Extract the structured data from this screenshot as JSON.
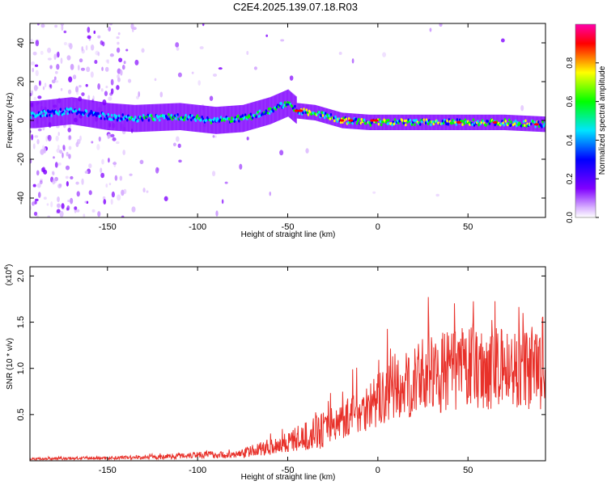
{
  "title": "C2E4.2025.139.07.18.R03",
  "chart_data": [
    {
      "type": "heatmap",
      "xlabel": "Height of straight line (km)",
      "ylabel": "Frequency (Hz)",
      "xlim": [
        -193,
        93
      ],
      "ylim": [
        -50,
        50
      ],
      "xticks": [
        -150,
        -100,
        -50,
        0,
        50
      ],
      "yticks": [
        -40,
        -20,
        0,
        20,
        40
      ],
      "colorbar": {
        "label": "Normalized spectral amplitude",
        "range": [
          0,
          1
        ],
        "ticks": [
          0.0,
          0.2,
          0.4,
          0.6,
          0.8
        ],
        "colors": [
          "#ffffff",
          "#d9b3ff",
          "#8000ff",
          "#0000ff",
          "#00e5ff",
          "#00ff00",
          "#ffff00",
          "#ff0000",
          "#ff00aa"
        ]
      },
      "ridge": [
        {
          "x": -190,
          "y": 3
        },
        {
          "x": -170,
          "y": 5
        },
        {
          "x": -150,
          "y": 2
        },
        {
          "x": -135,
          "y": 1
        },
        {
          "x": -110,
          "y": 2
        },
        {
          "x": -90,
          "y": 0
        },
        {
          "x": -75,
          "y": 1
        },
        {
          "x": -60,
          "y": 5
        },
        {
          "x": -50,
          "y": 9
        },
        {
          "x": -45,
          "y": 5
        },
        {
          "x": -35,
          "y": 4
        },
        {
          "x": -20,
          "y": 0
        },
        {
          "x": -5,
          "y": -1
        },
        {
          "x": 10,
          "y": -1
        },
        {
          "x": 40,
          "y": -1
        },
        {
          "x": 70,
          "y": -1
        },
        {
          "x": 93,
          "y": -2
        }
      ]
    },
    {
      "type": "line",
      "xlabel": "Height of straight line (km)",
      "ylabel": "SNR (10 * v/v)",
      "multiplier": "(x10",
      "multiplier_exp": "4",
      "multiplier_close": ")",
      "xlim": [
        -193,
        93
      ],
      "ylim": [
        0,
        21000
      ],
      "xticks": [
        -150,
        -100,
        -50,
        0,
        50
      ],
      "yticks": [
        5000,
        10000,
        15000,
        20000
      ],
      "ytick_labels": [
        "0.5",
        "1.0",
        "1.5",
        "2.0"
      ],
      "color": "#e8312a",
      "trend": [
        {
          "x": -193,
          "y": 200
        },
        {
          "x": -150,
          "y": 300
        },
        {
          "x": -120,
          "y": 400
        },
        {
          "x": -100,
          "y": 700
        },
        {
          "x": -80,
          "y": 600
        },
        {
          "x": -60,
          "y": 1500
        },
        {
          "x": -40,
          "y": 2600
        },
        {
          "x": -25,
          "y": 3800
        },
        {
          "x": -10,
          "y": 5500
        },
        {
          "x": 10,
          "y": 7500
        },
        {
          "x": 25,
          "y": 9000
        },
        {
          "x": 40,
          "y": 9800
        },
        {
          "x": 55,
          "y": 10100
        },
        {
          "x": 70,
          "y": 9900
        },
        {
          "x": 85,
          "y": 10000
        },
        {
          "x": 93,
          "y": 10200
        }
      ]
    }
  ]
}
